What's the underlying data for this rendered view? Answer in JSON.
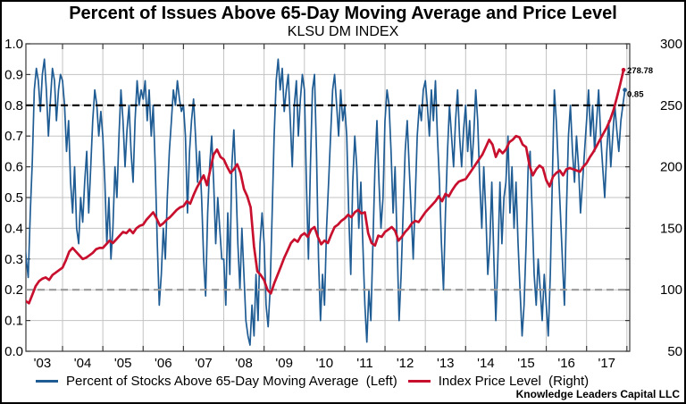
{
  "title": "Percent of Issues Above 65-Day Moving Average and Price Level",
  "subtitle": "KLSU DM INDEX",
  "watermark": "Knowledge Leaders Capital LLC",
  "legend": [
    {
      "label": "Percent of Stocks Above 65-Day Moving Average  (Left)",
      "color": "#1f5c94"
    },
    {
      "label": "Index Price Level  (Right)",
      "color": "#c8102e"
    }
  ],
  "chart_data": {
    "type": "line",
    "title": "Percent of Issues Above 65-Day Moving Average and Price Level",
    "subtitle": "KLSU DM INDEX",
    "grid": true,
    "colors": {
      "grid": "#c3c3c3",
      "frame": "#3a3a3a",
      "tick": "#3a3a3a"
    },
    "x_tick_labels": [
      "'03",
      "'04",
      "'05",
      "'06",
      "'07",
      "'08",
      "'09",
      "'10",
      "'11",
      "'12",
      "'13",
      "'14",
      "'15",
      "'16",
      "'17"
    ],
    "x_label_years": [
      2003.5,
      2004.5,
      2005.5,
      2006.5,
      2007.5,
      2008.5,
      2009.5,
      2010.5,
      2011.5,
      2012.5,
      2013.5,
      2014.5,
      2015.5,
      2016.5,
      2017.5
    ],
    "x_gridline_years": [
      2004,
      2005,
      2006,
      2007,
      2008,
      2009,
      2010,
      2011,
      2012,
      2013,
      2014,
      2015,
      2016,
      2017,
      2018
    ],
    "left_axis": {
      "min": 0,
      "max": 1,
      "ticks": [
        0,
        0.1,
        0.2,
        0.3,
        0.4,
        0.5,
        0.6,
        0.7,
        0.8,
        0.9,
        1
      ],
      "labels": [
        "0.0",
        "0.1",
        "0.2",
        "0.3",
        "0.4",
        "0.5",
        "0.6",
        "0.7",
        "0.8",
        "0.9",
        "1.0"
      ]
    },
    "right_axis": {
      "min": 50,
      "max": 300,
      "ticks": [
        50,
        100,
        150,
        200,
        250,
        300
      ],
      "labels": [
        "50",
        "100",
        "150",
        "200",
        "250",
        "300"
      ]
    },
    "reference_lines": [
      {
        "axis": "left",
        "value": 0.8,
        "color": "#000000",
        "dash": "8 5",
        "width": 2.2
      },
      {
        "axis": "left",
        "value": 0.2,
        "color": "#999999",
        "dash": "8 5",
        "width": 2.2
      }
    ],
    "series": [
      {
        "id": "percent-above-ma",
        "name": "Percent of Stocks Above 65-Day Moving Average",
        "axis": "left",
        "color": "#1f5c94",
        "width": 1.7,
        "x_start": 2003.0,
        "x_step": 0.05,
        "values": [
          0.55,
          0.38,
          0.3,
          0.24,
          0.45,
          0.62,
          0.85,
          0.92,
          0.88,
          0.78,
          0.9,
          0.95,
          0.85,
          0.7,
          0.82,
          0.92,
          0.88,
          0.75,
          0.85,
          0.9,
          0.88,
          0.8,
          0.65,
          0.75,
          0.55,
          0.45,
          0.6,
          0.4,
          0.35,
          0.5,
          0.42,
          0.55,
          0.65,
          0.45,
          0.6,
          0.75,
          0.85,
          0.8,
          0.7,
          0.78,
          0.7,
          0.55,
          0.35,
          0.5,
          0.3,
          0.4,
          0.6,
          0.5,
          0.7,
          0.85,
          0.75,
          0.6,
          0.72,
          0.8,
          0.65,
          0.55,
          0.75,
          0.88,
          0.8,
          0.85,
          0.82,
          0.88,
          0.75,
          0.85,
          0.7,
          0.8,
          0.6,
          0.35,
          0.15,
          0.25,
          0.4,
          0.3,
          0.5,
          0.65,
          0.75,
          0.85,
          0.8,
          0.88,
          0.82,
          0.78,
          0.8,
          0.7,
          0.45,
          0.65,
          0.75,
          0.82,
          0.7,
          0.55,
          0.65,
          0.5,
          0.3,
          0.18,
          0.45,
          0.6,
          0.7,
          0.55,
          0.35,
          0.5,
          0.4,
          0.3,
          0.3,
          0.15,
          0.45,
          0.25,
          0.6,
          0.72,
          0.55,
          0.35,
          0.2,
          0.4,
          0.25,
          0.1,
          0.05,
          0.02,
          0.15,
          0.05,
          0.25,
          0.1,
          0.35,
          0.45,
          0.35,
          0.15,
          0.08,
          0.2,
          0.45,
          0.7,
          0.88,
          0.95,
          0.85,
          0.92,
          0.78,
          0.85,
          0.9,
          0.75,
          0.6,
          0.8,
          0.88,
          0.7,
          0.82,
          0.9,
          0.85,
          0.55,
          0.3,
          0.6,
          0.85,
          0.9,
          0.65,
          0.3,
          0.1,
          0.25,
          0.15,
          0.4,
          0.55,
          0.7,
          0.85,
          0.9,
          0.8,
          0.7,
          0.85,
          0.75,
          0.8,
          0.7,
          0.45,
          0.25,
          0.55,
          0.7,
          0.6,
          0.4,
          0.55,
          0.35,
          0.15,
          0.03,
          0.2,
          0.1,
          0.35,
          0.6,
          0.75,
          0.55,
          0.4,
          0.5,
          0.75,
          0.85,
          0.8,
          0.65,
          0.45,
          0.6,
          0.35,
          0.1,
          0.25,
          0.45,
          0.65,
          0.75,
          0.6,
          0.45,
          0.3,
          0.5,
          0.7,
          0.8,
          0.75,
          0.85,
          0.88,
          0.8,
          0.7,
          0.85,
          0.75,
          0.88,
          0.7,
          0.55,
          0.35,
          0.2,
          0.45,
          0.65,
          0.8,
          0.7,
          0.6,
          0.75,
          0.85,
          0.7,
          0.6,
          0.72,
          0.8,
          0.65,
          0.75,
          0.6,
          0.7,
          0.85,
          0.75,
          0.55,
          0.4,
          0.6,
          0.45,
          0.25,
          0.35,
          0.55,
          0.3,
          0.1,
          0.3,
          0.55,
          0.35,
          0.5,
          0.55,
          0.7,
          0.45,
          0.6,
          0.4,
          0.55,
          0.35,
          0.2,
          0.05,
          0.15,
          0.35,
          0.6,
          0.65,
          0.45,
          0.25,
          0.15,
          0.3,
          0.2,
          0.1,
          0.25,
          0.15,
          0.05,
          0.25,
          0.55,
          0.85,
          0.75,
          0.6,
          0.45,
          0.3,
          0.15,
          0.45,
          0.7,
          0.8,
          0.65,
          0.55,
          0.7,
          0.6,
          0.45,
          0.55,
          0.65,
          0.75,
          0.85,
          0.7,
          0.8,
          0.65,
          0.75,
          0.85,
          0.7,
          0.6,
          0.5,
          0.65,
          0.75,
          0.6,
          0.7,
          0.8,
          0.72,
          0.65,
          0.75,
          0.8,
          0.85
        ]
      },
      {
        "id": "index-price-level",
        "name": "Index Price Level",
        "axis": "right",
        "color": "#c8102e",
        "width": 2.7,
        "x_start": 2003.0,
        "x_step": 0.0833333,
        "values": [
          98,
          91,
          89,
          96,
          103,
          107,
          109,
          110,
          108,
          112,
          114,
          116,
          118,
          124,
          131,
          134,
          131,
          128,
          125,
          126,
          128,
          130,
          133,
          134,
          134,
          137,
          140,
          138,
          141,
          144,
          147,
          146,
          149,
          146,
          150,
          152,
          153,
          157,
          160,
          163,
          158,
          152,
          154,
          157,
          159,
          162,
          165,
          167,
          168,
          172,
          170,
          177,
          183,
          188,
          193,
          185,
          198,
          210,
          214,
          208,
          206,
          200,
          195,
          198,
          202,
          195,
          182,
          176,
          167,
          135,
          115,
          112,
          108,
          100,
          97,
          105,
          112,
          119,
          126,
          132,
          138,
          141,
          139,
          144,
          146,
          143,
          149,
          151,
          143,
          137,
          140,
          138,
          145,
          151,
          153,
          156,
          158,
          161,
          159,
          163,
          165,
          162,
          163,
          146,
          138,
          136,
          144,
          143,
          147,
          149,
          151,
          148,
          140,
          143,
          147,
          150,
          154,
          156,
          155,
          159,
          163,
          166,
          169,
          172,
          176,
          172,
          178,
          176,
          181,
          185,
          188,
          189,
          190,
          194,
          198,
          202,
          206,
          210,
          216,
          222,
          218,
          208,
          214,
          211,
          214,
          220,
          222,
          225,
          224,
          218,
          216,
          201,
          193,
          198,
          201,
          199,
          189,
          184,
          192,
          195,
          197,
          193,
          198,
          199,
          198,
          197,
          196,
          200,
          203,
          208,
          212,
          217,
          222,
          227,
          232,
          238,
          246,
          256,
          267,
          278.78
        ]
      }
    ],
    "annotations": [
      {
        "text": "278.78",
        "axis": "right",
        "value": 278.78,
        "color": "#c8102e",
        "dy": 4
      },
      {
        "text": "0.85",
        "axis": "left",
        "value": 0.85,
        "color": "#1f5c94",
        "dy": 8
      }
    ]
  }
}
